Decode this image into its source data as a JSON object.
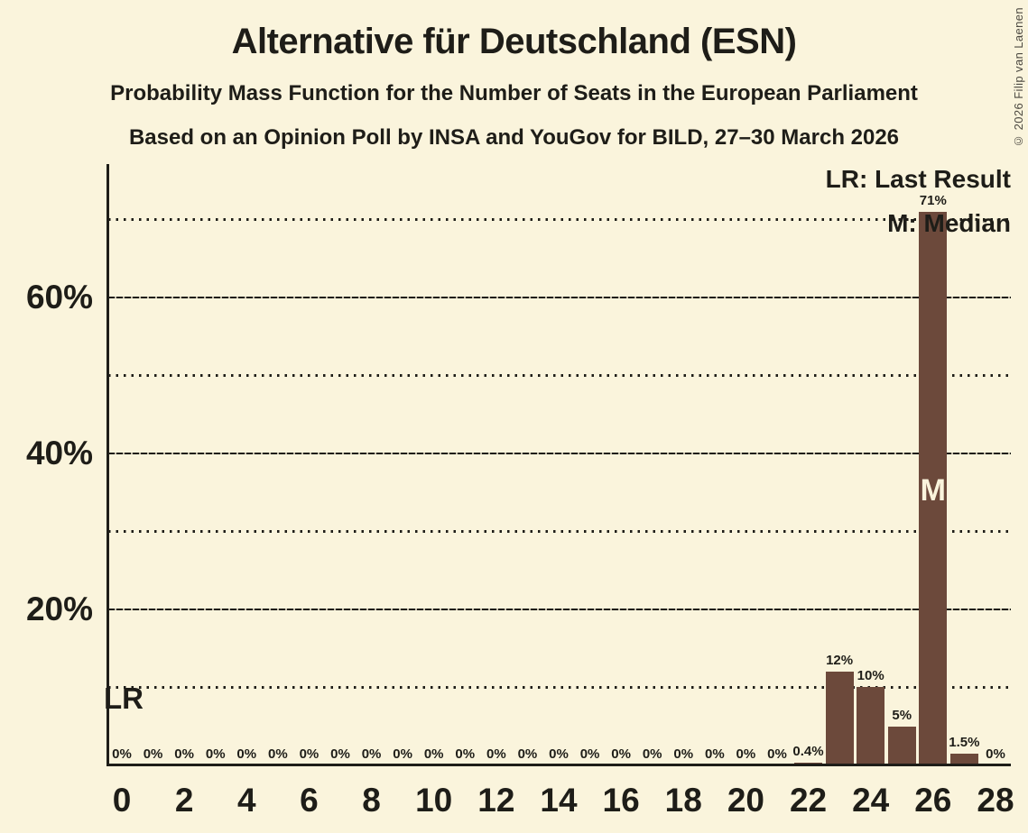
{
  "header": {
    "title": "Alternative für Deutschland (ESN)",
    "subtitle1": "Probability Mass Function for the Number of Seats in the European Parliament",
    "subtitle2": "Based on an Opinion Poll by INSA and YouGov for BILD, 27–30 March 2026"
  },
  "copyright": "© 2026 Filip van Laenen",
  "legend": {
    "last_result": "LR: Last Result",
    "median": "M: Median"
  },
  "colors": {
    "background": "#faf4dc",
    "bar": "#6c493b",
    "text": "#1e1d18"
  },
  "chart_data": {
    "type": "bar",
    "title": "Alternative für Deutschland (ESN)",
    "xlabel": "",
    "ylabel": "",
    "ylim": [
      0,
      77
    ],
    "grid": "horizontal",
    "legend_position": "top-right",
    "categories": [
      0,
      1,
      2,
      3,
      4,
      5,
      6,
      7,
      8,
      9,
      10,
      11,
      12,
      13,
      14,
      15,
      16,
      17,
      18,
      19,
      20,
      21,
      22,
      23,
      24,
      25,
      26,
      27,
      28
    ],
    "values": [
      0,
      0,
      0,
      0,
      0,
      0,
      0,
      0,
      0,
      0,
      0,
      0,
      0,
      0,
      0,
      0,
      0,
      0,
      0,
      0,
      0,
      0,
      0.4,
      12,
      10,
      5,
      71,
      1.5,
      0
    ],
    "bar_labels": [
      "0%",
      "0%",
      "0%",
      "0%",
      "0%",
      "0%",
      "0%",
      "0%",
      "0%",
      "0%",
      "0%",
      "0%",
      "0%",
      "0%",
      "0%",
      "0%",
      "0%",
      "0%",
      "0%",
      "0%",
      "0%",
      "0%",
      "0.4%",
      "12%",
      "10%",
      "5%",
      "71%",
      "1.5%",
      "0%"
    ],
    "x_tick_labels": [
      "0",
      "2",
      "4",
      "6",
      "8",
      "10",
      "12",
      "14",
      "16",
      "18",
      "20",
      "22",
      "24",
      "26",
      "28"
    ],
    "x_tick_seats": [
      0,
      2,
      4,
      6,
      8,
      10,
      12,
      14,
      16,
      18,
      20,
      22,
      24,
      26,
      28
    ],
    "y_axis": {
      "ticks": [
        {
          "pct": 20,
          "label": "20%"
        },
        {
          "pct": 40,
          "label": "40%"
        },
        {
          "pct": 60,
          "label": "60%"
        }
      ],
      "solid_gridlines": [
        20,
        40,
        60
      ],
      "dotted_gridlines": [
        10,
        30,
        50,
        70
      ]
    },
    "markers": {
      "last_result": {
        "seat": 0,
        "label": "LR"
      },
      "median": {
        "seat": 26,
        "label": "M"
      }
    }
  }
}
